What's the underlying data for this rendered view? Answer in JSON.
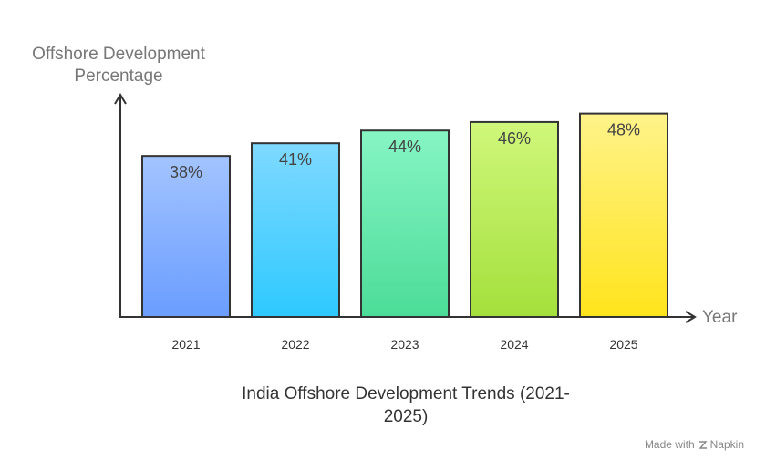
{
  "chart_data": {
    "type": "bar",
    "title": "India Offshore Development Trends (2021-2025)",
    "title_lines": [
      "India Offshore Development Trends (2021-",
      "2025)"
    ],
    "ylabel_lines": [
      "Offshore Development",
      "Percentage"
    ],
    "xlabel": "Year",
    "categories": [
      "2021",
      "2022",
      "2023",
      "2024",
      "2025"
    ],
    "values": [
      38,
      41,
      44,
      46,
      48
    ],
    "value_labels": [
      "38%",
      "41%",
      "44%",
      "46%",
      "48%"
    ],
    "unit": "%",
    "ylim": [
      0,
      52
    ],
    "grid": false,
    "colors": [
      {
        "top": "#a3c4ff",
        "bottom": "#6a9dff"
      },
      {
        "top": "#7fd9ff",
        "bottom": "#2ec9ff"
      },
      {
        "top": "#86f5c4",
        "bottom": "#4cdc98"
      },
      {
        "top": "#cff77a",
        "bottom": "#a4e03c"
      },
      {
        "top": "#fff38a",
        "bottom": "#ffe41c"
      }
    ]
  },
  "watermark": {
    "prefix": "Made with",
    "brand": "Napkin"
  }
}
